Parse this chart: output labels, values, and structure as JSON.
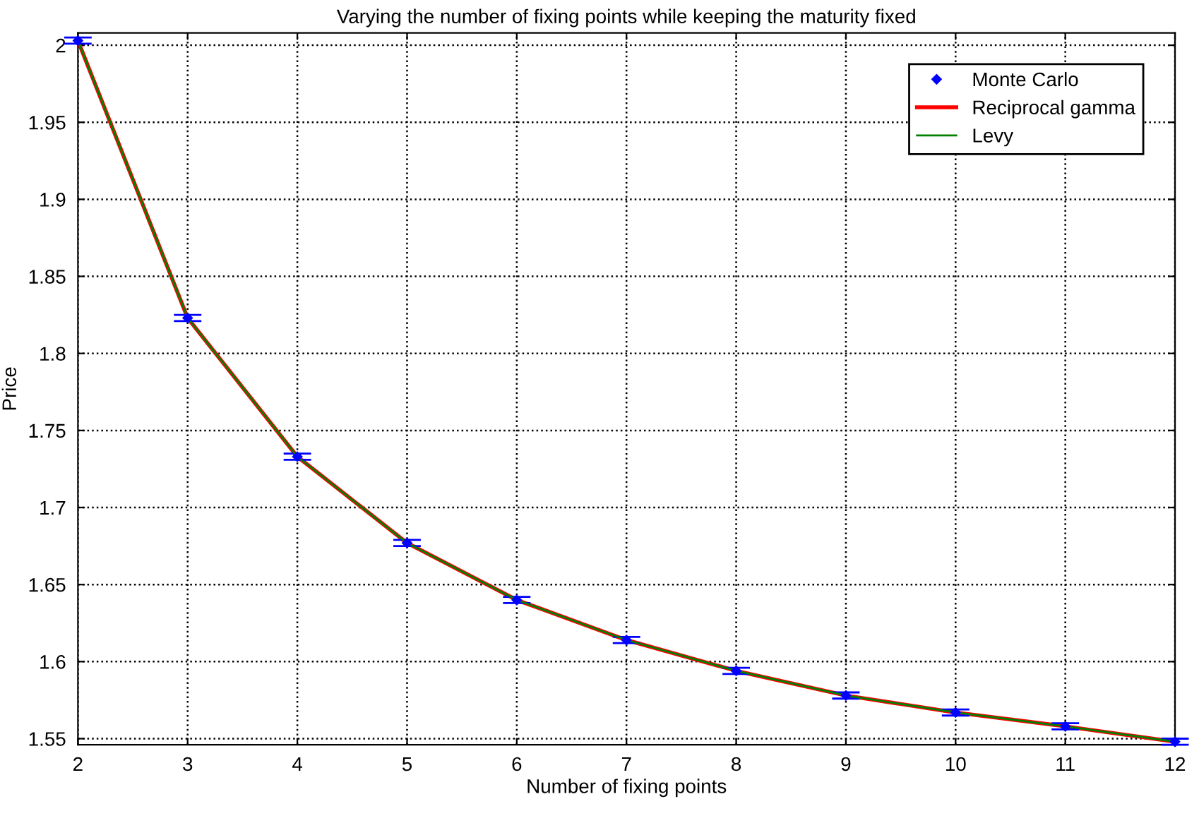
{
  "chart_data": {
    "type": "line",
    "title": "Varying the number of fixing points while keeping the maturity fixed",
    "xlabel": "Number of fixing points",
    "ylabel": "Price",
    "x": [
      2,
      3,
      4,
      5,
      6,
      7,
      8,
      9,
      10,
      11,
      12
    ],
    "series": [
      {
        "name": "Monte Carlo",
        "type": "scatter",
        "color": "#0000ff",
        "marker": "diamond",
        "values": [
          2.003,
          1.823,
          1.733,
          1.677,
          1.64,
          1.614,
          1.594,
          1.578,
          1.567,
          1.558,
          1.548
        ],
        "errors": [
          0.002,
          0.002,
          0.002,
          0.002,
          0.002,
          0.002,
          0.002,
          0.002,
          0.002,
          0.002,
          0.002
        ]
      },
      {
        "name": "Reciprocal gamma",
        "color": "#ff0000",
        "values": [
          2.003,
          1.823,
          1.733,
          1.677,
          1.64,
          1.614,
          1.594,
          1.578,
          1.567,
          1.558,
          1.548
        ]
      },
      {
        "name": "Levy",
        "color": "#008000",
        "values": [
          2.003,
          1.823,
          1.733,
          1.677,
          1.64,
          1.614,
          1.594,
          1.578,
          1.567,
          1.558,
          1.548
        ]
      }
    ],
    "xlim": [
      2,
      12
    ],
    "ylim": [
      1.546,
      2.008
    ],
    "xticks": [
      2,
      3,
      4,
      5,
      6,
      7,
      8,
      9,
      10,
      11,
      12
    ],
    "yticks": [
      1.55,
      1.6,
      1.65,
      1.7,
      1.75,
      1.8,
      1.85,
      1.9,
      1.95,
      2
    ],
    "grid": true,
    "legend": "top right",
    "line_style": "solid"
  }
}
